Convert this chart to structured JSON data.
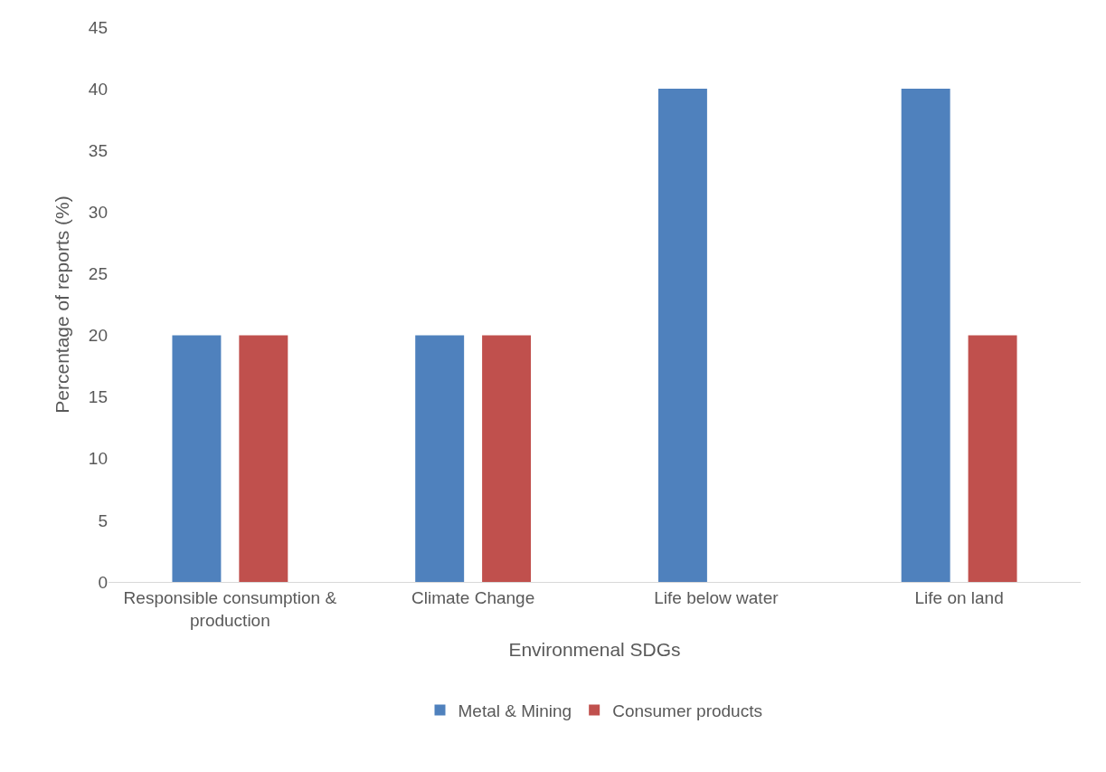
{
  "chart_data": {
    "type": "bar",
    "xlabel": "Environmenal SDGs",
    "ylabel": "Percentage of reports (%)",
    "categories": [
      "Responsible consumption & production",
      "Climate Change",
      "Life below water",
      "Life on land"
    ],
    "series": [
      {
        "name": "Metal & Mining",
        "color": "#4f81bd",
        "values": [
          20,
          20,
          40,
          40
        ]
      },
      {
        "name": "Consumer products",
        "color": "#c0504d",
        "values": [
          20,
          20,
          0,
          20
        ]
      }
    ],
    "ylim": [
      0,
      45
    ],
    "yticks": [
      0,
      5,
      10,
      15,
      20,
      25,
      30,
      35,
      40,
      45
    ],
    "grid": false,
    "legend": "bottom"
  }
}
